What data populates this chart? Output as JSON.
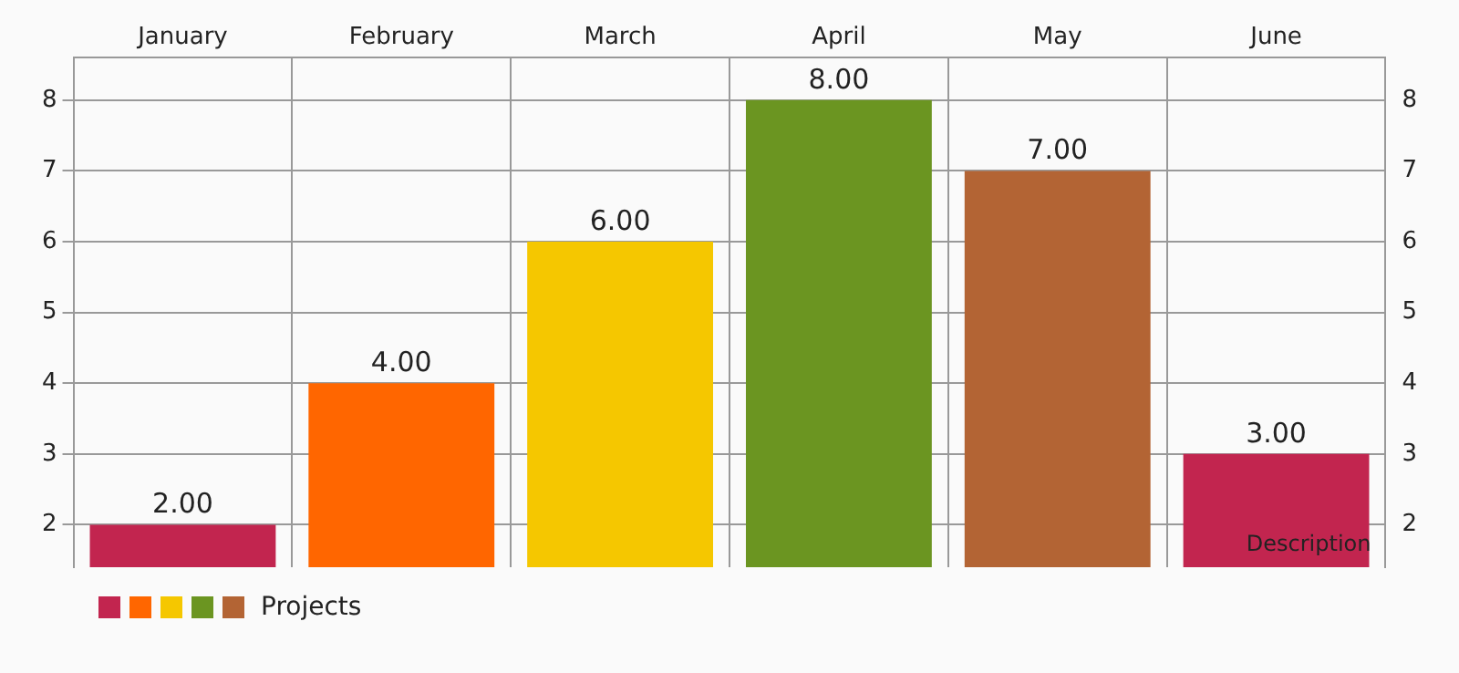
{
  "chart_data": {
    "type": "bar",
    "categories": [
      "January",
      "February",
      "March",
      "April",
      "May",
      "June"
    ],
    "series": [
      {
        "name": "Projects",
        "colors": [
          "#c2254f",
          "#ff6600",
          "#f5c700",
          "#6b9521",
          "#b36434",
          "#c2254f"
        ],
        "values": [
          2,
          4,
          6,
          8,
          7,
          3
        ],
        "value_labels": [
          "2.00",
          "4.00",
          "6.00",
          "8.00",
          "7.00",
          "3.00"
        ]
      }
    ],
    "ylim": [
      1.4,
      8.6
    ],
    "yticks": [
      2,
      3,
      4,
      5,
      6,
      7,
      8
    ],
    "y2lim": [
      1.4,
      8.6
    ],
    "y2ticks": [
      2,
      3,
      4,
      5,
      6,
      7,
      8
    ],
    "grid": true,
    "legend": "bottom left",
    "annotations": [
      "Description"
    ]
  }
}
